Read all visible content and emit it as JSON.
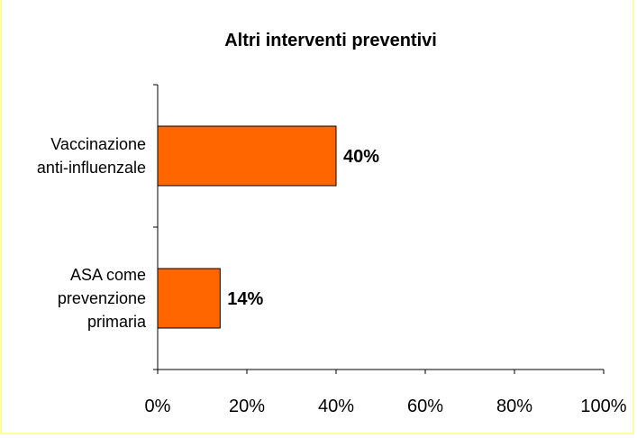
{
  "chart_data": {
    "type": "bar",
    "orientation": "horizontal",
    "title": "Altri interventi preventivi",
    "categories": [
      "Vaccinazione anti-influenzale",
      "ASA come prevenzione primaria"
    ],
    "category_label_lines": [
      [
        "Vaccinazione",
        "anti-influenzale"
      ],
      [
        "ASA come",
        "prevenzione",
        "primaria"
      ]
    ],
    "values": [
      40,
      14
    ],
    "data_labels": [
      "40%",
      "14%"
    ],
    "xlim": [
      0,
      100
    ],
    "xticks": [
      0,
      20,
      40,
      60,
      80,
      100
    ],
    "xtick_labels": [
      "0%",
      "20%",
      "40%",
      "60%",
      "80%",
      "100%"
    ],
    "grid": false,
    "legend": "none",
    "colors": {
      "bar": "#ff6600",
      "bar_border": "#000000",
      "frame": "#ffff99",
      "axis": "#000000"
    }
  }
}
